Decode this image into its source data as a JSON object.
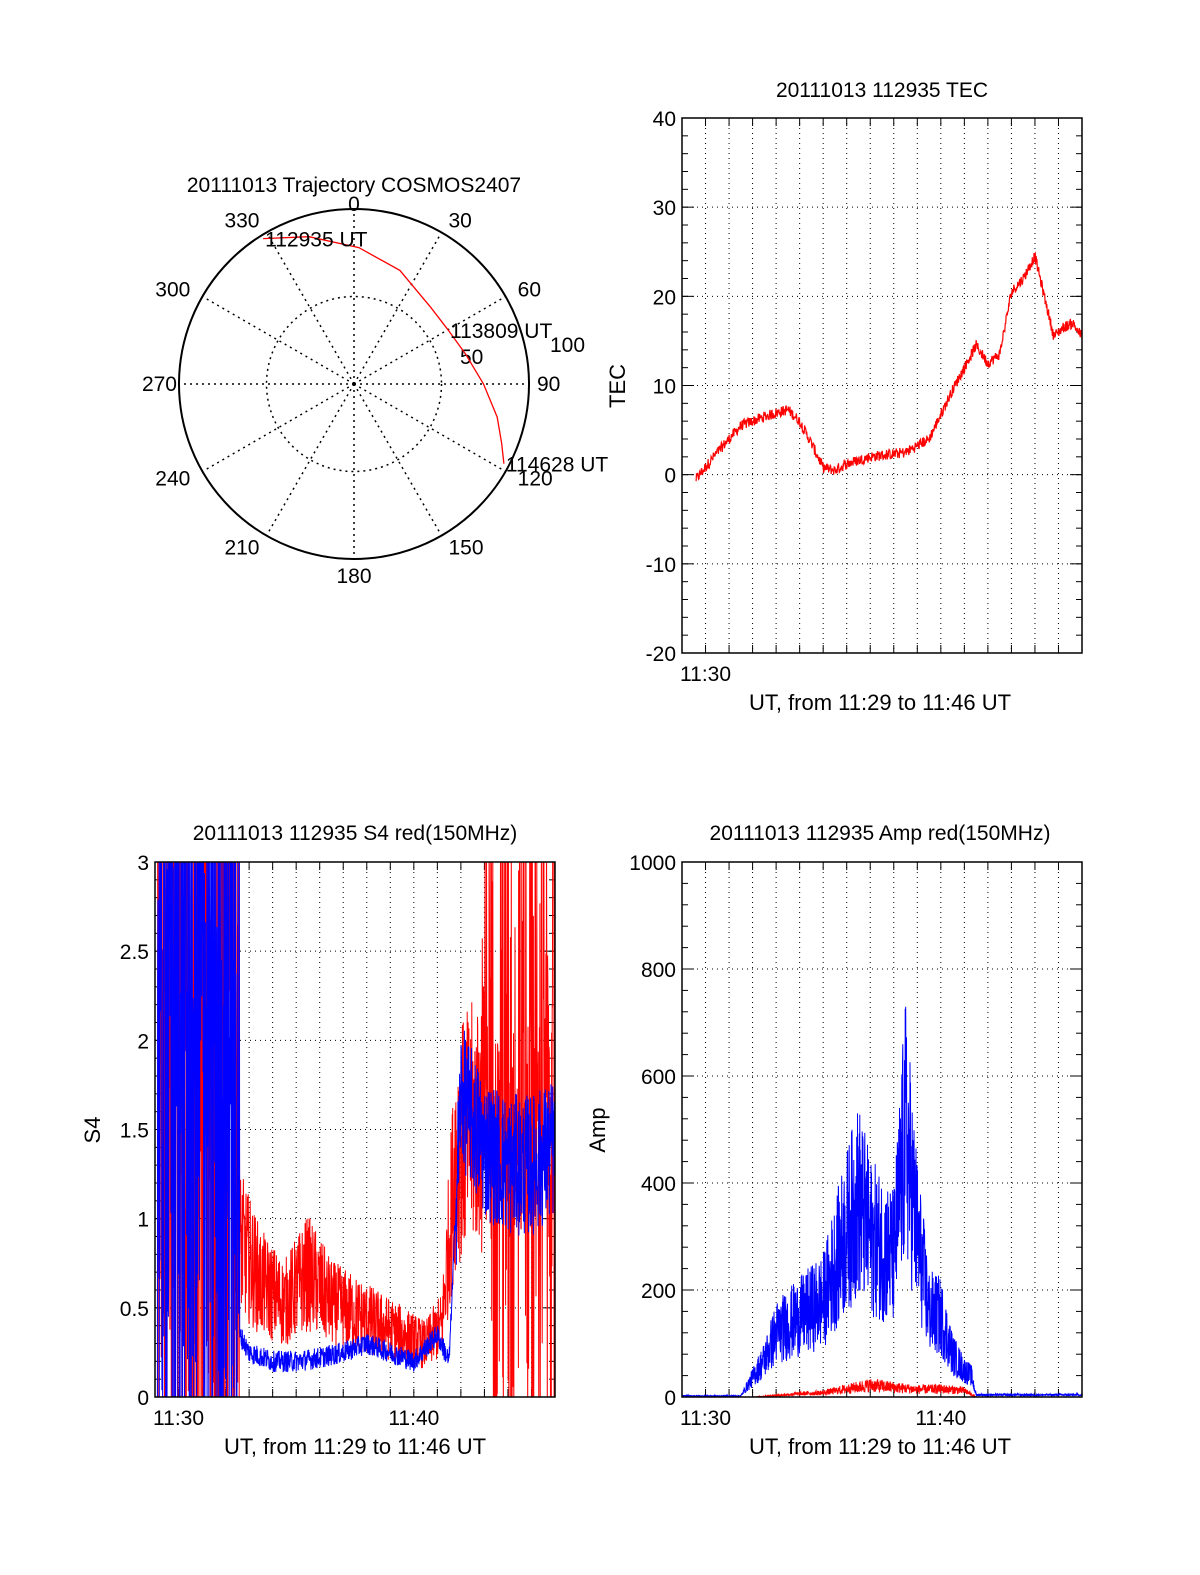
{
  "colors": {
    "red": "#ff0000",
    "blue": "#0000ff",
    "axis": "#000000",
    "grid": "#000000"
  },
  "chart_data": [
    {
      "type": "polar",
      "title": "20111013 Trajectory COSMOS2407",
      "azimuth_labels": [
        "0",
        "30",
        "60",
        "90",
        "120",
        "150",
        "180",
        "210",
        "240",
        "270",
        "300",
        "330"
      ],
      "radius_labels": [
        "50",
        "100"
      ],
      "rlim": [
        0,
        100
      ],
      "grid": true,
      "series": [
        {
          "color": "#ff0000",
          "points": [
            [
              328,
              98
            ],
            [
              343,
              88
            ],
            [
              2,
              78
            ],
            [
              22,
              70
            ],
            [
              45,
              62
            ],
            [
              60,
              62
            ],
            [
              75,
              66
            ],
            [
              90,
              74
            ],
            [
              103,
              84
            ],
            [
              112,
              91
            ],
            [
              118,
              97
            ]
          ]
        }
      ],
      "annotations": [
        {
          "text": "112935 UT",
          "az": 328,
          "r": 98
        },
        {
          "text": "113809 UT",
          "az": 60,
          "r": 62
        },
        {
          "text": "114628 UT",
          "az": 118,
          "r": 97
        }
      ]
    },
    {
      "type": "line",
      "title": "20111013 112935 TEC",
      "xlabel": "UT, from 11:29 to 11:46 UT",
      "ylabel": "TEC",
      "xlim": [
        "11:29",
        "11:46"
      ],
      "ylim": [
        -20,
        40
      ],
      "yticks": [
        -20,
        -10,
        0,
        10,
        20,
        30,
        40
      ],
      "xtick_labels": [
        "11:30"
      ],
      "grid": true,
      "series": [
        {
          "color": "#ff0000",
          "x": [
            "11:29.6",
            "11:30.5",
            "11:31.5",
            "11:32.5",
            "11:33.5",
            "11:34.0",
            "11:34.5",
            "11:35.0",
            "11:35.5",
            "11:36.0",
            "11:37.0",
            "11:38.5",
            "11:39.5",
            "11:40.5",
            "11:41.5",
            "11:42.0",
            "11:42.5",
            "11:43.0",
            "11:43.5",
            "11:44.0",
            "11:44.4",
            "11:44.8",
            "11:45.2",
            "11:45.6",
            "11:46.0"
          ],
          "y": [
            -0.5,
            2.5,
            5.5,
            6.5,
            7.3,
            6.0,
            3.5,
            0.8,
            0.5,
            1.2,
            2.0,
            2.5,
            4.0,
            9.5,
            14.5,
            12.5,
            13.5,
            20.5,
            22.0,
            24.5,
            20.0,
            15.5,
            16.5,
            17.0,
            15.5
          ]
        }
      ]
    },
    {
      "type": "line",
      "title": "20111013 112935 S4 red(150MHz)",
      "xlabel": "UT, from 11:29 to 11:46 UT",
      "ylabel": "S4",
      "xlim": [
        "11:29",
        "11:46"
      ],
      "ylim": [
        0,
        3
      ],
      "yticks": [
        0,
        0.5,
        1,
        1.5,
        2,
        2.5,
        3
      ],
      "ytick_labels": [
        "0",
        "0.5",
        "1",
        "1.5",
        "2",
        "2.5",
        "3"
      ],
      "xtick_labels": [
        "11:30",
        "11:40"
      ],
      "grid": true,
      "series": [
        {
          "color": "#ff0000",
          "x": [
            "11:29.1",
            "11:31.0",
            "11:32.2",
            "11:32.6",
            "11:33.5",
            "11:34.5",
            "11:35.5",
            "11:36.5",
            "11:37.5",
            "11:38.5",
            "11:39.5",
            "11:40.5",
            "11:41.2",
            "11:41.8",
            "11:42.5",
            "11:43.5",
            "11:44.5",
            "11:45.5",
            "11:46.0"
          ],
          "y": [
            3.0,
            3.0,
            2.0,
            0.75,
            0.55,
            0.45,
            0.6,
            0.45,
            0.4,
            0.35,
            0.3,
            0.25,
            0.35,
            1.2,
            1.3,
            1.5,
            1.5,
            1.6,
            1.6
          ]
        },
        {
          "color": "#0000ff",
          "x": [
            "11:29.1",
            "11:31.0",
            "11:32.6",
            "11:33.0",
            "11:34.0",
            "11:35.0",
            "11:36.0",
            "11:37.0",
            "11:38.0",
            "11:39.0",
            "11:40.0",
            "11:41.0",
            "11:41.5",
            "11:42.0",
            "11:43.0",
            "11:44.0",
            "11:45.0",
            "11:46.0"
          ],
          "y": [
            3.0,
            3.0,
            0.35,
            0.25,
            0.2,
            0.2,
            0.22,
            0.25,
            0.3,
            0.25,
            0.2,
            0.35,
            0.2,
            1.7,
            1.4,
            1.3,
            1.3,
            1.4
          ]
        }
      ]
    },
    {
      "type": "line",
      "title": "20111013 112935 Amp red(150MHz)",
      "xlabel": "UT, from 11:29 to 11:46 UT",
      "ylabel": "Amp",
      "xlim": [
        "11:29",
        "11:46"
      ],
      "ylim": [
        0,
        1000
      ],
      "yticks": [
        0,
        200,
        400,
        600,
        800,
        1000
      ],
      "xtick_labels": [
        "11:30",
        "11:40"
      ],
      "grid": true,
      "series": [
        {
          "color": "#0000ff",
          "x": [
            "11:29.0",
            "11:31.5",
            "11:32.5",
            "11:33.0",
            "11:34.0",
            "11:35.0",
            "11:36.0",
            "11:36.5",
            "11:37.0",
            "11:37.5",
            "11:38.0",
            "11:38.5",
            "11:39.0",
            "11:39.5",
            "11:40.0",
            "11:40.5",
            "11:41.0",
            "11:41.3",
            "11:41.5",
            "11:46.0"
          ],
          "y": [
            2,
            2,
            70,
            120,
            150,
            180,
            310,
            370,
            300,
            280,
            260,
            500,
            300,
            160,
            150,
            80,
            50,
            40,
            4,
            4
          ]
        },
        {
          "color": "#ff0000",
          "x": [
            "11:29.0",
            "11:32.0",
            "11:33.0",
            "11:34.0",
            "11:35.0",
            "11:36.0",
            "11:37.0",
            "11:38.0",
            "11:39.0",
            "11:40.0",
            "11:41.0",
            "11:41.5",
            "11:46.0"
          ],
          "y": [
            0,
            0,
            3,
            6,
            8,
            15,
            22,
            18,
            14,
            15,
            12,
            0,
            0
          ]
        }
      ]
    }
  ]
}
